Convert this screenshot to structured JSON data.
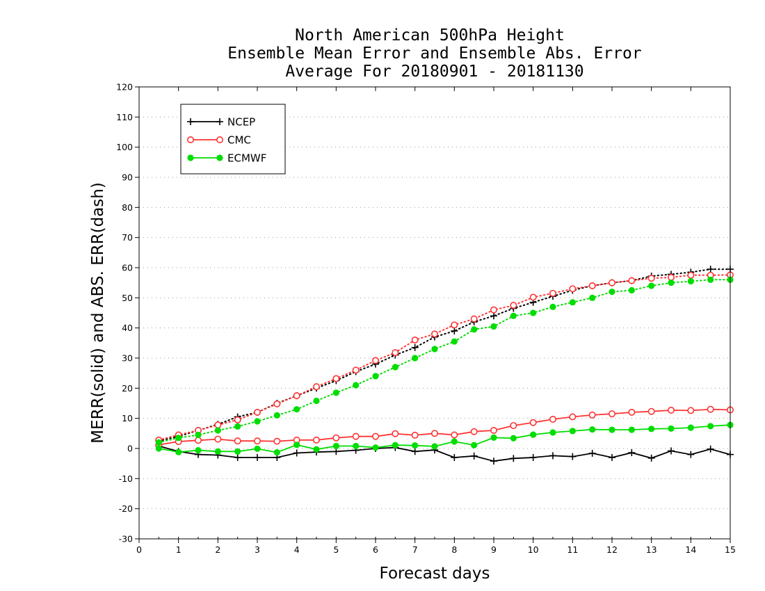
{
  "chart_data": {
    "type": "line",
    "title": [
      "North American 500hPa Height",
      "Ensemble Mean Error and Ensemble Abs. Error",
      "Average For 20180901 - 20181130"
    ],
    "xlabel": "Forecast days",
    "ylabel": "MERR(solid) and ABS. ERR(dash)",
    "xlim": [
      0,
      15
    ],
    "ylim": [
      -30,
      120
    ],
    "xticks": [
      0,
      1,
      2,
      3,
      4,
      5,
      6,
      7,
      8,
      9,
      10,
      11,
      12,
      13,
      14,
      15
    ],
    "yticks": [
      -30,
      -20,
      -10,
      0,
      10,
      20,
      30,
      40,
      50,
      60,
      70,
      80,
      90,
      100,
      110,
      120
    ],
    "grid": true,
    "legend_position": "top-left",
    "x": [
      0.5,
      1,
      1.5,
      2,
      2.5,
      3,
      3.5,
      4,
      4.5,
      5,
      5.5,
      6,
      6.5,
      7,
      7.5,
      8,
      8.5,
      9,
      9.5,
      10,
      10.5,
      11,
      11.5,
      12,
      12.5,
      13,
      13.5,
      14,
      14.5,
      15
    ],
    "series": [
      {
        "name": "NCEP",
        "color": "#000000",
        "marker": "plus",
        "merr": [
          0.8,
          -1,
          -2,
          -2.2,
          -3,
          -3,
          -3,
          -1.5,
          -1.2,
          -1,
          -0.6,
          0,
          0.3,
          -1,
          -0.5,
          -3,
          -2.5,
          -4.2,
          -3.3,
          -3,
          -2.4,
          -2.7,
          -1.6,
          -3,
          -1.4,
          -3.2,
          -0.8,
          -2,
          -0.2,
          -2
        ],
        "abs_err": [
          2.5,
          4,
          6,
          8,
          10.5,
          12,
          15,
          17.5,
          20,
          22.5,
          25.5,
          28,
          31,
          33.5,
          37,
          39,
          42,
          44,
          46.5,
          48.5,
          50.5,
          52.5,
          54,
          55,
          55.7,
          57.2,
          57.8,
          58.5,
          59.5,
          59.5
        ]
      },
      {
        "name": "CMC",
        "color": "#ff3333",
        "marker": "open-circle",
        "merr": [
          1.2,
          2.3,
          2.7,
          3.1,
          2.5,
          2.5,
          2.4,
          2.8,
          2.8,
          3.5,
          4,
          4,
          4.9,
          4.4,
          5,
          4.5,
          5.6,
          6,
          7.6,
          8.6,
          9.7,
          10.5,
          11.1,
          11.5,
          12,
          12.3,
          12.7,
          12.6,
          13,
          12.8
        ],
        "abs_err": [
          2.8,
          4.5,
          6,
          7.8,
          9.5,
          12,
          14.8,
          17.5,
          20.5,
          23.2,
          26,
          29.2,
          31.8,
          36,
          38,
          41,
          43,
          46,
          47.5,
          50.2,
          51.5,
          53,
          54,
          55,
          55.7,
          56.5,
          56.8,
          57.5,
          57.5,
          57.6
        ]
      },
      {
        "name": "ECMWF",
        "color": "#00dd00",
        "marker": "filled-circle",
        "merr": [
          0,
          -1.2,
          -0.6,
          -1,
          -1,
          -0.1,
          -1.3,
          1.2,
          -0.3,
          0.8,
          0.8,
          0.3,
          1.1,
          1,
          0.7,
          2.3,
          1.1,
          3.6,
          3.4,
          4.6,
          5.3,
          5.8,
          6.3,
          6.2,
          6.2,
          6.5,
          6.6,
          6.9,
          7.4,
          7.8
        ],
        "abs_err": [
          2,
          3.5,
          4.5,
          6,
          7.3,
          9,
          11,
          13,
          15.8,
          18.5,
          21,
          24,
          27,
          30,
          33,
          35.5,
          39.5,
          40.5,
          44,
          45,
          47,
          48.5,
          50,
          52,
          52.5,
          54,
          55,
          55.5,
          56,
          56
        ]
      }
    ]
  }
}
